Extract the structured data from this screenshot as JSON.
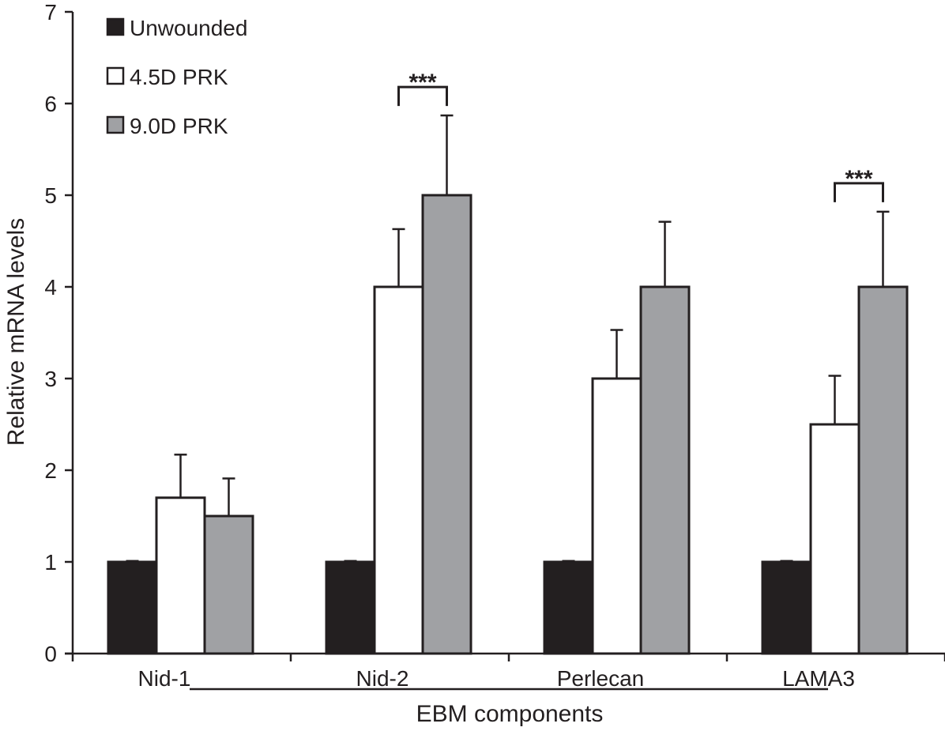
{
  "chart_data": {
    "type": "bar",
    "title": "",
    "xlabel": "EBM components",
    "ylabel": "Relative mRNA levels",
    "ylim": [
      0,
      7
    ],
    "yticks": [
      "0",
      "1",
      "2",
      "3",
      "4",
      "5",
      "6",
      "7"
    ],
    "grid": false,
    "legend_position": "top-left",
    "categories": [
      "Nid-1",
      "Nid-2",
      "Perlecan",
      "LAMA3"
    ],
    "series": [
      {
        "name": "Unwounded",
        "color": "#231f20",
        "values": [
          1.0,
          1.0,
          1.0,
          1.0
        ],
        "errors": [
          0.01,
          0.01,
          0.01,
          0.01
        ]
      },
      {
        "name": "4.5D PRK",
        "color": "#ffffff",
        "values": [
          1.7,
          4.0,
          3.0,
          2.5
        ],
        "errors": [
          0.47,
          0.63,
          0.53,
          0.53
        ]
      },
      {
        "name": "9.0D PRK",
        "color": "#a0a1a4",
        "values": [
          1.5,
          5.0,
          4.0,
          4.0
        ],
        "errors": [
          0.41,
          0.87,
          0.71,
          0.82
        ]
      }
    ],
    "annotations": [
      {
        "text": "***",
        "category": "Nid-2",
        "between": [
          "4.5D PRK",
          "9.0D PRK"
        ]
      },
      {
        "text": "***",
        "category": "LAMA3",
        "between": [
          "4.5D PRK",
          "9.0D PRK"
        ]
      }
    ]
  }
}
